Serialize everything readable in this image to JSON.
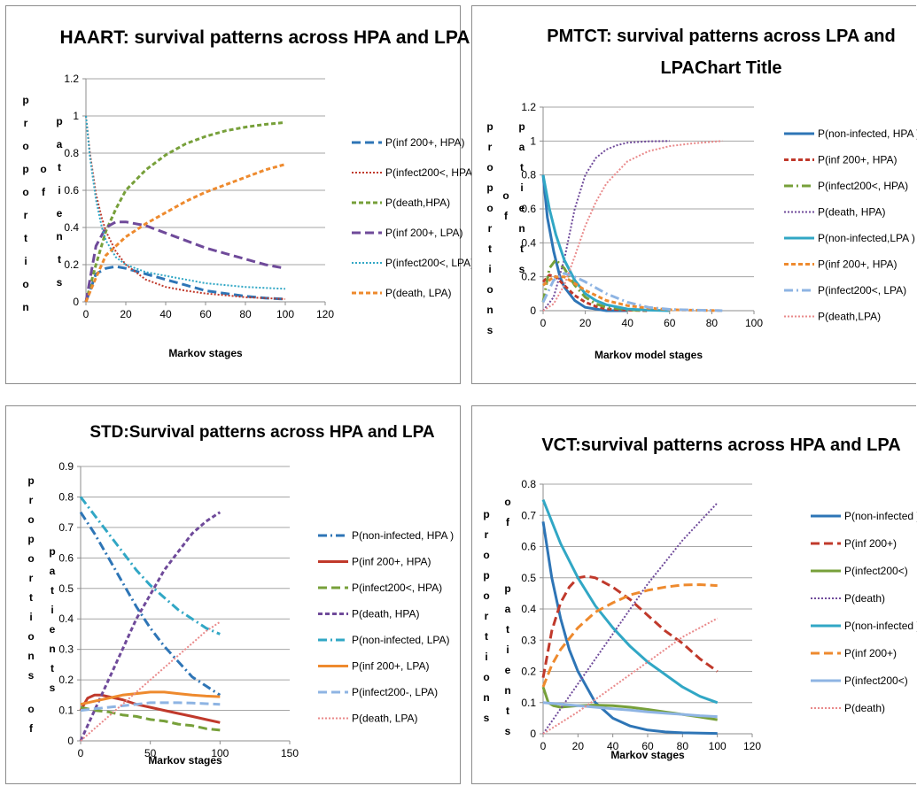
{
  "chart_data": [
    {
      "type": "line",
      "title": "HAART: survival patterns across  HPA and LPA",
      "xlabel": "Markov stages",
      "ylabel_col1": "proportion",
      "ylabel_col2": "of",
      "ylabel_col3": "patients",
      "xlim": [
        0,
        120
      ],
      "ylim": [
        0,
        1.2
      ],
      "xticks": [
        "0",
        "20",
        "40",
        "60",
        "80",
        "100",
        "120"
      ],
      "yticks": [
        "0",
        "0.2",
        "0.4",
        "0.6",
        "0.8",
        "1",
        "1.2"
      ],
      "grid": true,
      "legend": "right",
      "series": [
        {
          "name": "P(inf 200+, HPA)",
          "color": "#2e75b6",
          "dash": "long",
          "x": [
            0,
            5,
            10,
            15,
            20,
            30,
            40,
            50,
            60,
            70,
            80,
            90,
            100
          ],
          "y": [
            0,
            0.15,
            0.18,
            0.19,
            0.18,
            0.15,
            0.12,
            0.09,
            0.06,
            0.045,
            0.03,
            0.02,
            0.015
          ]
        },
        {
          "name": "P(infect200<, HPA)",
          "color": "#c0392b",
          "dash": "dot",
          "x": [
            0,
            2,
            5,
            8,
            10,
            15,
            20,
            30,
            40,
            50,
            60,
            70,
            80,
            90,
            100
          ],
          "y": [
            1,
            0.8,
            0.58,
            0.45,
            0.38,
            0.27,
            0.2,
            0.12,
            0.08,
            0.06,
            0.045,
            0.035,
            0.025,
            0.02,
            0.015
          ]
        },
        {
          "name": "P(death,HPA)",
          "color": "#77a03a",
          "dash": "short",
          "x": [
            0,
            5,
            10,
            15,
            20,
            30,
            40,
            50,
            60,
            70,
            80,
            90,
            100
          ],
          "y": [
            0,
            0.2,
            0.38,
            0.5,
            0.6,
            0.71,
            0.79,
            0.85,
            0.89,
            0.92,
            0.94,
            0.955,
            0.965
          ]
        },
        {
          "name": "P(inf 200+, LPA)",
          "color": "#6f4a9a",
          "dash": "long",
          "x": [
            0,
            5,
            10,
            15,
            20,
            30,
            40,
            50,
            60,
            70,
            80,
            90,
            100
          ],
          "y": [
            0,
            0.3,
            0.4,
            0.43,
            0.43,
            0.41,
            0.37,
            0.33,
            0.29,
            0.26,
            0.23,
            0.2,
            0.18
          ]
        },
        {
          "name": "P(infect200<, LPA)",
          "color": "#31a7c5",
          "dash": "dot",
          "x": [
            0,
            2,
            5,
            8,
            10,
            15,
            20,
            30,
            40,
            50,
            60,
            70,
            80,
            90,
            100
          ],
          "y": [
            1,
            0.78,
            0.55,
            0.4,
            0.33,
            0.24,
            0.2,
            0.16,
            0.14,
            0.12,
            0.1,
            0.09,
            0.08,
            0.075,
            0.07
          ]
        },
        {
          "name": "P(death, LPA)",
          "color": "#ee8a2e",
          "dash": "short",
          "x": [
            0,
            5,
            10,
            15,
            20,
            30,
            40,
            50,
            60,
            70,
            80,
            90,
            100
          ],
          "y": [
            0,
            0.13,
            0.25,
            0.3,
            0.35,
            0.42,
            0.48,
            0.54,
            0.59,
            0.63,
            0.67,
            0.71,
            0.74
          ]
        }
      ]
    },
    {
      "type": "line",
      "title": "PMTCT: survival patterns across LPA and",
      "title2": "LPAChart Title",
      "xlabel": "Markov model stages",
      "ylabel_col1": "proportions",
      "ylabel_col2": "of",
      "ylabel_col3": "patients",
      "xlim": [
        0,
        100
      ],
      "ylim": [
        0,
        1.2
      ],
      "xticks": [
        "0",
        "20",
        "40",
        "60",
        "80",
        "100"
      ],
      "yticks": [
        "0",
        "0.2",
        "0.4",
        "0.6",
        "0.8",
        "1",
        "1.2"
      ],
      "grid": true,
      "legend": "right",
      "series": [
        {
          "name": "P(non-infected, HPA )",
          "color": "#2e75b6",
          "dash": "solid",
          "x": [
            0,
            2,
            5,
            8,
            10,
            15,
            20,
            25,
            30,
            40
          ],
          "y": [
            0.8,
            0.55,
            0.35,
            0.2,
            0.14,
            0.06,
            0.02,
            0.01,
            0,
            0
          ]
        },
        {
          "name": "P(inf 200+, HPA)",
          "color": "#c0392b",
          "dash": "short",
          "x": [
            0,
            3,
            6,
            10,
            15,
            20,
            25,
            30,
            40,
            50
          ],
          "y": [
            0.17,
            0.21,
            0.2,
            0.15,
            0.09,
            0.05,
            0.025,
            0.01,
            0.003,
            0
          ]
        },
        {
          "name": "P(infect200<, HPA)",
          "color": "#77a03a",
          "dash": "dashdot",
          "x": [
            0,
            3,
            6,
            10,
            15,
            20,
            25,
            30,
            40,
            50
          ],
          "y": [
            0.05,
            0.25,
            0.3,
            0.25,
            0.15,
            0.08,
            0.04,
            0.02,
            0.005,
            0
          ]
        },
        {
          "name": "P(death, HPA)",
          "color": "#6f4a9a",
          "dash": "dot",
          "x": [
            0,
            5,
            10,
            15,
            20,
            25,
            30,
            35,
            40,
            50,
            60
          ],
          "y": [
            0,
            0.08,
            0.3,
            0.6,
            0.8,
            0.9,
            0.95,
            0.975,
            0.99,
            0.998,
            1
          ]
        },
        {
          "name": "P(non-infected,LPA )",
          "color": "#31a7c5",
          "dash": "solid",
          "x": [
            0,
            3,
            6,
            10,
            15,
            20,
            25,
            30,
            40,
            50,
            60
          ],
          "y": [
            0.8,
            0.6,
            0.45,
            0.3,
            0.18,
            0.1,
            0.06,
            0.035,
            0.01,
            0.003,
            0
          ]
        },
        {
          "name": "P(inf 200+, HPA)",
          "color": "#ee8a2e",
          "dash": "short",
          "x": [
            0,
            5,
            10,
            15,
            20,
            30,
            40,
            50,
            60,
            70,
            85
          ],
          "y": [
            0.15,
            0.2,
            0.2,
            0.16,
            0.12,
            0.06,
            0.03,
            0.015,
            0.006,
            0.003,
            0
          ]
        },
        {
          "name": "P(infect200<, LPA)",
          "color": "#8eb4e3",
          "dash": "dashdot",
          "x": [
            0,
            5,
            10,
            15,
            20,
            30,
            40,
            50,
            60,
            70,
            85
          ],
          "y": [
            0.05,
            0.18,
            0.22,
            0.2,
            0.17,
            0.1,
            0.05,
            0.02,
            0.008,
            0.004,
            0
          ]
        },
        {
          "name": "P(death,LPA)",
          "color": "#e9898a",
          "dash": "dot",
          "x": [
            0,
            5,
            10,
            15,
            20,
            25,
            30,
            40,
            50,
            60,
            70,
            85
          ],
          "y": [
            0,
            0.04,
            0.15,
            0.32,
            0.5,
            0.64,
            0.75,
            0.88,
            0.94,
            0.97,
            0.985,
            1
          ]
        }
      ]
    },
    {
      "type": "line",
      "title": "STD:Survival patterns across HPA and LPA",
      "xlabel": "Markov stages",
      "ylabel_col1": "proportions",
      "ylabel_col1b": "of",
      "ylabel_col2": "patients",
      "xlim": [
        0,
        150
      ],
      "ylim": [
        0,
        0.9
      ],
      "xticks": [
        "0",
        "50",
        "100",
        "150"
      ],
      "yticks": [
        "0",
        "0.1",
        "0.2",
        "0.3",
        "0.4",
        "0.5",
        "0.6",
        "0.7",
        "0.8",
        "0.9"
      ],
      "grid": true,
      "legend": "right",
      "series": [
        {
          "name": "P(non-infected, HPA )",
          "color": "#2e75b6",
          "dash": "dashdot",
          "x": [
            0,
            10,
            20,
            30,
            40,
            50,
            60,
            70,
            80,
            90,
            100
          ],
          "y": [
            0.75,
            0.68,
            0.6,
            0.52,
            0.44,
            0.37,
            0.31,
            0.26,
            0.21,
            0.18,
            0.15
          ]
        },
        {
          "name": "P(inf 200+, HPA)",
          "color": "#c0392b",
          "dash": "solid",
          "x": [
            0,
            5,
            10,
            15,
            20,
            30,
            40,
            50,
            60,
            70,
            80,
            90,
            100
          ],
          "y": [
            0.1,
            0.14,
            0.15,
            0.15,
            0.145,
            0.135,
            0.12,
            0.11,
            0.1,
            0.09,
            0.08,
            0.07,
            0.06
          ]
        },
        {
          "name": "P(infect200<, HPA)",
          "color": "#77a03a",
          "dash": "long",
          "x": [
            0,
            10,
            20,
            30,
            40,
            50,
            60,
            70,
            80,
            90,
            100
          ],
          "y": [
            0.11,
            0.1,
            0.095,
            0.085,
            0.08,
            0.07,
            0.065,
            0.055,
            0.05,
            0.04,
            0.035
          ]
        },
        {
          "name": "P(death, HPA)",
          "color": "#6f4a9a",
          "dash": "short",
          "x": [
            0,
            10,
            20,
            30,
            40,
            50,
            60,
            70,
            80,
            90,
            100
          ],
          "y": [
            0,
            0.1,
            0.2,
            0.3,
            0.4,
            0.48,
            0.56,
            0.62,
            0.68,
            0.72,
            0.75
          ]
        },
        {
          "name": "P(non-infected, LPA)",
          "color": "#31a7c5",
          "dash": "dashdot",
          "x": [
            0,
            10,
            20,
            30,
            40,
            50,
            60,
            70,
            80,
            90,
            100
          ],
          "y": [
            0.8,
            0.74,
            0.68,
            0.62,
            0.56,
            0.51,
            0.47,
            0.43,
            0.4,
            0.37,
            0.35
          ]
        },
        {
          "name": "P(inf 200+, LPA)",
          "color": "#ee8a2e",
          "dash": "solid",
          "x": [
            0,
            10,
            20,
            30,
            40,
            50,
            60,
            70,
            80,
            90,
            100
          ],
          "y": [
            0.12,
            0.13,
            0.14,
            0.15,
            0.155,
            0.16,
            0.16,
            0.155,
            0.15,
            0.147,
            0.145
          ]
        },
        {
          "name": "P(infect200-, LPA)",
          "color": "#8eb4e3",
          "dash": "long",
          "x": [
            0,
            10,
            20,
            30,
            40,
            50,
            60,
            70,
            80,
            90,
            100
          ],
          "y": [
            0.1,
            0.105,
            0.11,
            0.115,
            0.12,
            0.125,
            0.125,
            0.125,
            0.124,
            0.122,
            0.12
          ]
        },
        {
          "name": "P(death, LPA)",
          "color": "#e9898a",
          "dash": "dot",
          "x": [
            0,
            10,
            20,
            30,
            40,
            50,
            60,
            70,
            80,
            90,
            100
          ],
          "y": [
            0,
            0.04,
            0.08,
            0.12,
            0.16,
            0.2,
            0.24,
            0.28,
            0.32,
            0.36,
            0.39
          ]
        }
      ]
    },
    {
      "type": "line",
      "title": "VCT:survival patterns across HPA and LPA",
      "xlabel": "Markov stages",
      "ylabel_col1": "proportions",
      "ylabel_col2": "of",
      "ylabel_col3": "patients",
      "xlim": [
        0,
        120
      ],
      "ylim": [
        0,
        0.8
      ],
      "xticks": [
        "0",
        "20",
        "40",
        "60",
        "80",
        "100",
        "120"
      ],
      "yticks": [
        "0",
        "0.1",
        "0.2",
        "0.3",
        "0.4",
        "0.5",
        "0.6",
        "0.7",
        "0.8"
      ],
      "grid": true,
      "legend": "right",
      "series": [
        {
          "name": "P(non-infected )",
          "color": "#2e75b6",
          "dash": "solid",
          "x": [
            0,
            5,
            10,
            15,
            20,
            30,
            40,
            50,
            60,
            70,
            80,
            90,
            100
          ],
          "y": [
            0.68,
            0.5,
            0.37,
            0.27,
            0.2,
            0.1,
            0.05,
            0.025,
            0.012,
            0.006,
            0.003,
            0.002,
            0.001
          ]
        },
        {
          "name": "P(inf 200+)",
          "color": "#c0392b",
          "dash": "long",
          "x": [
            0,
            5,
            10,
            15,
            20,
            25,
            30,
            40,
            50,
            60,
            70,
            80,
            90,
            100
          ],
          "y": [
            0.18,
            0.33,
            0.42,
            0.47,
            0.5,
            0.505,
            0.5,
            0.47,
            0.43,
            0.38,
            0.33,
            0.29,
            0.24,
            0.2
          ]
        },
        {
          "name": "P(infect200<)",
          "color": "#77a03a",
          "dash": "solid",
          "x": [
            0,
            3,
            6,
            10,
            20,
            30,
            40,
            50,
            60,
            70,
            80,
            90,
            100
          ],
          "y": [
            0.15,
            0.1,
            0.09,
            0.085,
            0.09,
            0.092,
            0.09,
            0.085,
            0.078,
            0.07,
            0.062,
            0.054,
            0.045
          ]
        },
        {
          "name": "P(death)",
          "color": "#6f4a9a",
          "dash": "dot",
          "x": [
            0,
            10,
            20,
            30,
            40,
            50,
            60,
            70,
            80,
            90,
            100
          ],
          "y": [
            0,
            0.08,
            0.16,
            0.24,
            0.32,
            0.4,
            0.48,
            0.55,
            0.62,
            0.68,
            0.74
          ]
        },
        {
          "name": "P(non-infected )",
          "color": "#31a7c5",
          "dash": "solid",
          "x": [
            0,
            10,
            20,
            30,
            40,
            50,
            60,
            70,
            80,
            90,
            100
          ],
          "y": [
            0.75,
            0.61,
            0.5,
            0.41,
            0.34,
            0.28,
            0.23,
            0.19,
            0.15,
            0.12,
            0.1
          ]
        },
        {
          "name": "P(inf 200+)",
          "color": "#ee8a2e",
          "dash": "long",
          "x": [
            0,
            5,
            10,
            20,
            30,
            40,
            50,
            60,
            70,
            80,
            90,
            100
          ],
          "y": [
            0.15,
            0.22,
            0.27,
            0.34,
            0.39,
            0.42,
            0.445,
            0.46,
            0.47,
            0.477,
            0.478,
            0.475
          ]
        },
        {
          "name": "P(infect200<)",
          "color": "#8eb4e3",
          "dash": "solid",
          "x": [
            0,
            10,
            20,
            30,
            40,
            50,
            60,
            70,
            80,
            90,
            100
          ],
          "y": [
            0.1,
            0.095,
            0.09,
            0.085,
            0.08,
            0.076,
            0.07,
            0.066,
            0.062,
            0.058,
            0.055
          ]
        },
        {
          "name": "P(death)",
          "color": "#e9898a",
          "dash": "dot",
          "x": [
            0,
            10,
            20,
            30,
            40,
            50,
            60,
            70,
            80,
            90,
            100
          ],
          "y": [
            0,
            0.035,
            0.07,
            0.11,
            0.15,
            0.19,
            0.23,
            0.27,
            0.31,
            0.34,
            0.37
          ]
        }
      ]
    }
  ]
}
